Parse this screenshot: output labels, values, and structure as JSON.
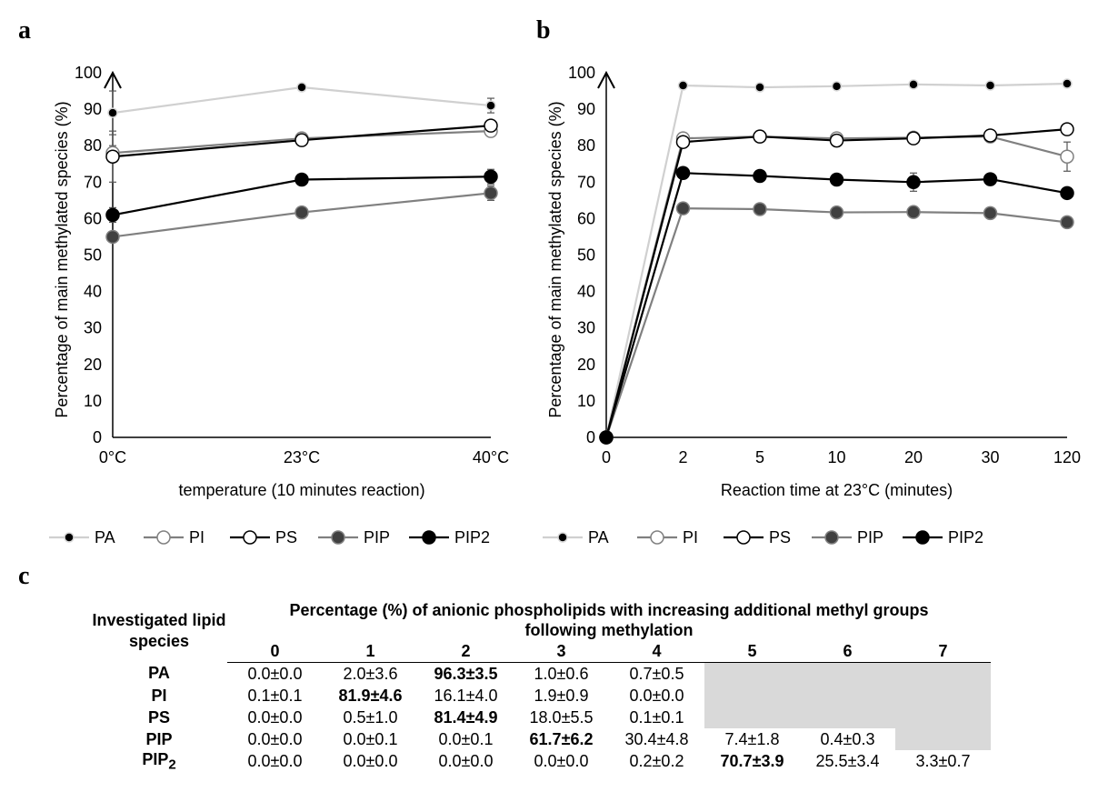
{
  "panels": {
    "a": "a",
    "b": "b",
    "c": "c"
  },
  "legend": [
    {
      "name": "PA",
      "stroke": "#d9d9d9",
      "fill": "#000000",
      "line": "#d0d0d0",
      "r": 5
    },
    {
      "name": "PI",
      "stroke": "#808080",
      "fill": "#ffffff",
      "line": "#808080",
      "r": 7
    },
    {
      "name": "PS",
      "stroke": "#000000",
      "fill": "#ffffff",
      "line": "#000000",
      "r": 7
    },
    {
      "name": "PIP",
      "stroke": "#808080",
      "fill": "#404040",
      "line": "#808080",
      "r": 7
    },
    {
      "name": "PIP2",
      "stroke": "#000000",
      "fill": "#000000",
      "line": "#000000",
      "r": 7
    }
  ],
  "chart_data": [
    {
      "type": "line",
      "panel": "a",
      "ylabel": "Percentage of main methylated species (%)",
      "xlabel": "temperature (10 minutes reaction)",
      "categories": [
        "0°C",
        "23°C",
        "40°C"
      ],
      "ylim": [
        0,
        100
      ],
      "yticks": [
        0,
        10,
        20,
        30,
        40,
        50,
        60,
        70,
        80,
        90,
        100
      ],
      "series": [
        {
          "name": "PA",
          "values": [
            89,
            96,
            91
          ],
          "err": [
            6,
            0.5,
            2
          ]
        },
        {
          "name": "PI",
          "values": [
            78,
            82,
            84
          ],
          "err": [
            2,
            0.5,
            1
          ]
        },
        {
          "name": "PS",
          "values": [
            77,
            81.5,
            85.5
          ],
          "err": [
            7,
            0.5,
            1
          ]
        },
        {
          "name": "PIP",
          "values": [
            55,
            61.7,
            67
          ],
          "err": [
            1,
            0.5,
            2
          ]
        },
        {
          "name": "PIP2",
          "values": [
            61,
            70.7,
            71.5
          ],
          "err": [
            2,
            0.5,
            2
          ]
        }
      ]
    },
    {
      "type": "line",
      "panel": "b",
      "ylabel": "Percentage of main methylated species (%)",
      "xlabel": "Reaction time at 23°C (minutes)",
      "categories": [
        "0",
        "2",
        "5",
        "10",
        "20",
        "30",
        "120"
      ],
      "ylim": [
        0,
        100
      ],
      "yticks": [
        0,
        10,
        20,
        30,
        40,
        50,
        60,
        70,
        80,
        90,
        100
      ],
      "series": [
        {
          "name": "PA",
          "values": [
            0,
            96.5,
            96,
            96.3,
            96.8,
            96.5,
            97
          ],
          "err": [
            0,
            0.3,
            0.3,
            0.3,
            0.3,
            0.3,
            0.3
          ]
        },
        {
          "name": "PI",
          "values": [
            0,
            82,
            82.5,
            82,
            82.2,
            82.5,
            77
          ],
          "err": [
            0,
            1,
            0.3,
            0.3,
            0.3,
            0.3,
            4
          ]
        },
        {
          "name": "PS",
          "values": [
            0,
            81,
            82.5,
            81.4,
            82,
            82.8,
            84.5
          ],
          "err": [
            0,
            1,
            0.3,
            0.3,
            0.3,
            0.3,
            0.5
          ]
        },
        {
          "name": "PIP",
          "values": [
            0,
            62.8,
            62.6,
            61.7,
            61.8,
            61.5,
            59
          ],
          "err": [
            0,
            0.5,
            0.3,
            0.3,
            0.3,
            0.3,
            0.5
          ]
        },
        {
          "name": "PIP2",
          "values": [
            0,
            72.5,
            71.7,
            70.7,
            70,
            70.8,
            67
          ],
          "err": [
            0,
            1,
            0.3,
            0.3,
            2.5,
            0.3,
            0.5
          ]
        }
      ]
    },
    {
      "type": "table",
      "panel": "c",
      "row_header": "Investigated lipid species",
      "column_header": "Percentage (%) of anionic phospholipids with increasing additional methyl groups following methylation",
      "columns": [
        "0",
        "1",
        "2",
        "3",
        "4",
        "5",
        "6",
        "7"
      ],
      "rows": [
        {
          "species": "PA",
          "sub": "",
          "cells": [
            "0.0±0.0",
            "2.0±3.6",
            "96.3±3.5",
            "1.0±0.6",
            "0.7±0.5",
            "",
            "",
            ""
          ],
          "bold": 2,
          "grey": [
            5,
            6,
            7
          ]
        },
        {
          "species": "PI",
          "sub": "",
          "cells": [
            "0.1±0.1",
            "81.9±4.6",
            "16.1±4.0",
            "1.9±0.9",
            "0.0±0.0",
            "",
            "",
            ""
          ],
          "bold": 1,
          "grey": [
            5,
            6,
            7
          ]
        },
        {
          "species": "PS",
          "sub": "",
          "cells": [
            "0.0±0.0",
            "0.5±1.0",
            "81.4±4.9",
            "18.0±5.5",
            "0.1±0.1",
            "",
            "",
            ""
          ],
          "bold": 2,
          "grey": [
            5,
            6,
            7
          ]
        },
        {
          "species": "PIP",
          "sub": "",
          "cells": [
            "0.0±0.0",
            "0.0±0.1",
            "0.0±0.1",
            "61.7±6.2",
            "30.4±4.8",
            "7.4±1.8",
            "0.4±0.3",
            ""
          ],
          "bold": 3,
          "grey": [
            7
          ]
        },
        {
          "species": "PIP",
          "sub": "2",
          "cells": [
            "0.0±0.0",
            "0.0±0.0",
            "0.0±0.0",
            "0.0±0.0",
            "0.2±0.2",
            "70.7±3.9",
            "25.5±3.4",
            "3.3±0.7"
          ],
          "bold": 5,
          "grey": []
        }
      ]
    }
  ]
}
